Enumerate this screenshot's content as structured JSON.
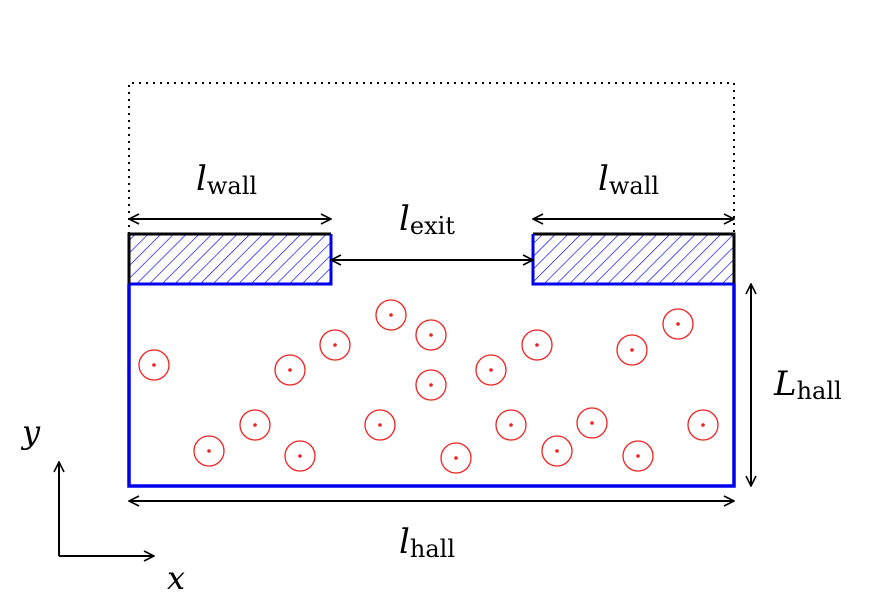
{
  "labels": {
    "wall_left": {
      "sym": "l",
      "sub": "wall"
    },
    "wall_right": {
      "sym": "l",
      "sub": "wall"
    },
    "exit": {
      "sym": "l",
      "sub": "exit"
    },
    "hall_height": {
      "sym": "L",
      "sub": "hall"
    },
    "hall_length": {
      "sym": "l",
      "sub": "hall"
    },
    "axis_y": "y",
    "axis_x": "x"
  },
  "colors": {
    "hall": "#0000ee",
    "wall_outline": "#000000",
    "person": "#ee2222",
    "arrow": "#000000"
  }
}
